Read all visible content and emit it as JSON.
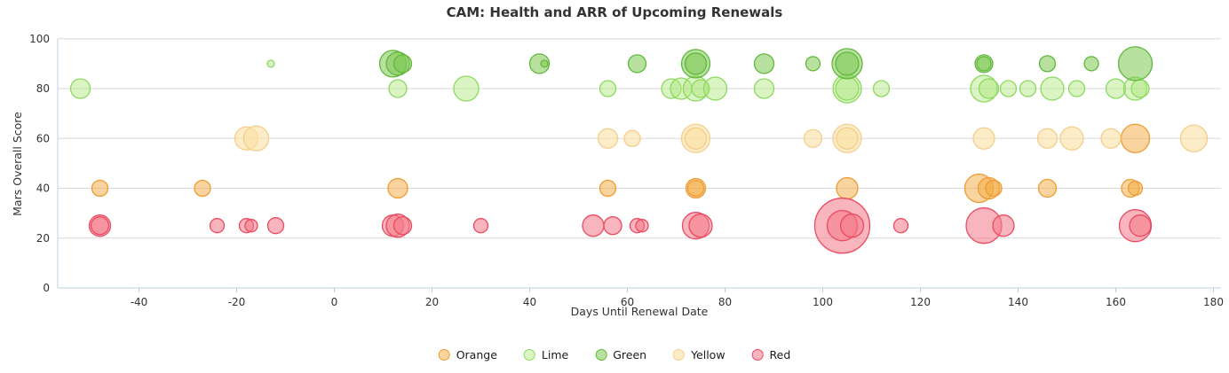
{
  "title": "CAM: Health and ARR of Upcoming Renewals",
  "chart_data": {
    "type": "scatter",
    "subtype": "bubble",
    "title": "CAM: Health and ARR of Upcoming Renewals",
    "xlabel": "Days Until Renewal Date",
    "ylabel": "Mars Overall Score",
    "xlim": [
      -57,
      182
    ],
    "ylim": [
      0,
      100
    ],
    "xticks": [
      -40,
      -20,
      0,
      20,
      40,
      60,
      80,
      100,
      120,
      140,
      160,
      180
    ],
    "yticks": [
      0,
      20,
      40,
      60,
      80,
      100
    ],
    "grid": "horizontal",
    "legend_position": "bottom-center",
    "axis_line_color": "#b9d0dc",
    "grid_color": "#d9d9d9",
    "series": [
      {
        "name": "Orange",
        "color": "#ED9B33",
        "fill": "rgba(243,170,62,0.50)",
        "points": [
          {
            "x": -48,
            "y": 40,
            "r": 9
          },
          {
            "x": -27,
            "y": 40,
            "r": 9
          },
          {
            "x": 13,
            "y": 40,
            "r": 11
          },
          {
            "x": 56,
            "y": 40,
            "r": 9
          },
          {
            "x": 74,
            "y": 40,
            "r": 11
          },
          {
            "x": 74,
            "y": 40,
            "r": 9
          },
          {
            "x": 105,
            "y": 40,
            "r": 12
          },
          {
            "x": 132,
            "y": 40,
            "r": 16
          },
          {
            "x": 134,
            "y": 40,
            "r": 12
          },
          {
            "x": 135,
            "y": 40,
            "r": 9
          },
          {
            "x": 146,
            "y": 40,
            "r": 10
          },
          {
            "x": 163,
            "y": 40,
            "r": 10
          },
          {
            "x": 164,
            "y": 40,
            "r": 8
          },
          {
            "x": 164,
            "y": 60,
            "r": 16
          }
        ]
      },
      {
        "name": "Lime",
        "color": "#8CD95F",
        "fill": "rgba(173,231,122,0.45)",
        "points": [
          {
            "x": -52,
            "y": 80,
            "r": 11
          },
          {
            "x": -13,
            "y": 90,
            "r": 4
          },
          {
            "x": 13,
            "y": 80,
            "r": 10
          },
          {
            "x": 27,
            "y": 80,
            "r": 14
          },
          {
            "x": 56,
            "y": 80,
            "r": 9
          },
          {
            "x": 69,
            "y": 80,
            "r": 11
          },
          {
            "x": 71,
            "y": 80,
            "r": 12
          },
          {
            "x": 74,
            "y": 80,
            "r": 14
          },
          {
            "x": 75,
            "y": 80,
            "r": 10
          },
          {
            "x": 78,
            "y": 80,
            "r": 13
          },
          {
            "x": 88,
            "y": 80,
            "r": 11
          },
          {
            "x": 105,
            "y": 80,
            "r": 16
          },
          {
            "x": 105,
            "y": 80,
            "r": 13
          },
          {
            "x": 112,
            "y": 80,
            "r": 9
          },
          {
            "x": 133,
            "y": 80,
            "r": 15
          },
          {
            "x": 134,
            "y": 80,
            "r": 11
          },
          {
            "x": 138,
            "y": 80,
            "r": 9
          },
          {
            "x": 142,
            "y": 80,
            "r": 9
          },
          {
            "x": 147,
            "y": 80,
            "r": 13
          },
          {
            "x": 152,
            "y": 80,
            "r": 9
          },
          {
            "x": 160,
            "y": 80,
            "r": 11
          },
          {
            "x": 164,
            "y": 80,
            "r": 13
          },
          {
            "x": 165,
            "y": 80,
            "r": 10
          }
        ]
      },
      {
        "name": "Green",
        "color": "#5FB83B",
        "fill": "rgba(126,200,82,0.55)",
        "points": [
          {
            "x": 12,
            "y": 90,
            "r": 15
          },
          {
            "x": 13,
            "y": 90,
            "r": 13
          },
          {
            "x": 14,
            "y": 90,
            "r": 10
          },
          {
            "x": 42,
            "y": 90,
            "r": 11
          },
          {
            "x": 43,
            "y": 90,
            "r": 4
          },
          {
            "x": 62,
            "y": 90,
            "r": 10
          },
          {
            "x": 74,
            "y": 90,
            "r": 16
          },
          {
            "x": 74,
            "y": 90,
            "r": 12
          },
          {
            "x": 88,
            "y": 90,
            "r": 11
          },
          {
            "x": 98,
            "y": 90,
            "r": 8
          },
          {
            "x": 105,
            "y": 90,
            "r": 17
          },
          {
            "x": 105,
            "y": 90,
            "r": 13
          },
          {
            "x": 133,
            "y": 90,
            "r": 10
          },
          {
            "x": 133,
            "y": 90,
            "r": 8
          },
          {
            "x": 146,
            "y": 90,
            "r": 9
          },
          {
            "x": 155,
            "y": 90,
            "r": 8
          },
          {
            "x": 164,
            "y": 90,
            "r": 19
          }
        ]
      },
      {
        "name": "Yellow",
        "color": "#F3CE8B",
        "fill": "rgba(250,225,163,0.60)",
        "points": [
          {
            "x": -18,
            "y": 60,
            "r": 13
          },
          {
            "x": -16,
            "y": 60,
            "r": 14
          },
          {
            "x": 56,
            "y": 60,
            "r": 11
          },
          {
            "x": 61,
            "y": 60,
            "r": 9
          },
          {
            "x": 74,
            "y": 60,
            "r": 16
          },
          {
            "x": 74,
            "y": 60,
            "r": 12
          },
          {
            "x": 98,
            "y": 60,
            "r": 10
          },
          {
            "x": 105,
            "y": 60,
            "r": 16
          },
          {
            "x": 105,
            "y": 60,
            "r": 12
          },
          {
            "x": 133,
            "y": 60,
            "r": 12
          },
          {
            "x": 146,
            "y": 60,
            "r": 11
          },
          {
            "x": 151,
            "y": 60,
            "r": 13
          },
          {
            "x": 159,
            "y": 60,
            "r": 11
          },
          {
            "x": 176,
            "y": 60,
            "r": 15
          }
        ]
      },
      {
        "name": "Red",
        "color": "#EC4A60",
        "fill": "rgba(244,120,134,0.55)",
        "points": [
          {
            "x": -48,
            "y": 25,
            "r": 12
          },
          {
            "x": -48,
            "y": 25,
            "r": 10
          },
          {
            "x": -24,
            "y": 25,
            "r": 8
          },
          {
            "x": -18,
            "y": 25,
            "r": 8
          },
          {
            "x": -17,
            "y": 25,
            "r": 7
          },
          {
            "x": -12,
            "y": 25,
            "r": 9
          },
          {
            "x": 12,
            "y": 25,
            "r": 12
          },
          {
            "x": 13,
            "y": 25,
            "r": 13
          },
          {
            "x": 14,
            "y": 25,
            "r": 10
          },
          {
            "x": 30,
            "y": 25,
            "r": 8
          },
          {
            "x": 53,
            "y": 25,
            "r": 12
          },
          {
            "x": 57,
            "y": 25,
            "r": 10
          },
          {
            "x": 62,
            "y": 25,
            "r": 8
          },
          {
            "x": 63,
            "y": 25,
            "r": 7
          },
          {
            "x": 74,
            "y": 25,
            "r": 15
          },
          {
            "x": 75,
            "y": 25,
            "r": 13
          },
          {
            "x": 104,
            "y": 25,
            "r": 31
          },
          {
            "x": 104,
            "y": 25,
            "r": 17
          },
          {
            "x": 106,
            "y": 25,
            "r": 13
          },
          {
            "x": 116,
            "y": 25,
            "r": 8
          },
          {
            "x": 133,
            "y": 25,
            "r": 20
          },
          {
            "x": 137,
            "y": 25,
            "r": 12
          },
          {
            "x": 164,
            "y": 25,
            "r": 18
          },
          {
            "x": 165,
            "y": 25,
            "r": 12
          }
        ]
      }
    ]
  }
}
